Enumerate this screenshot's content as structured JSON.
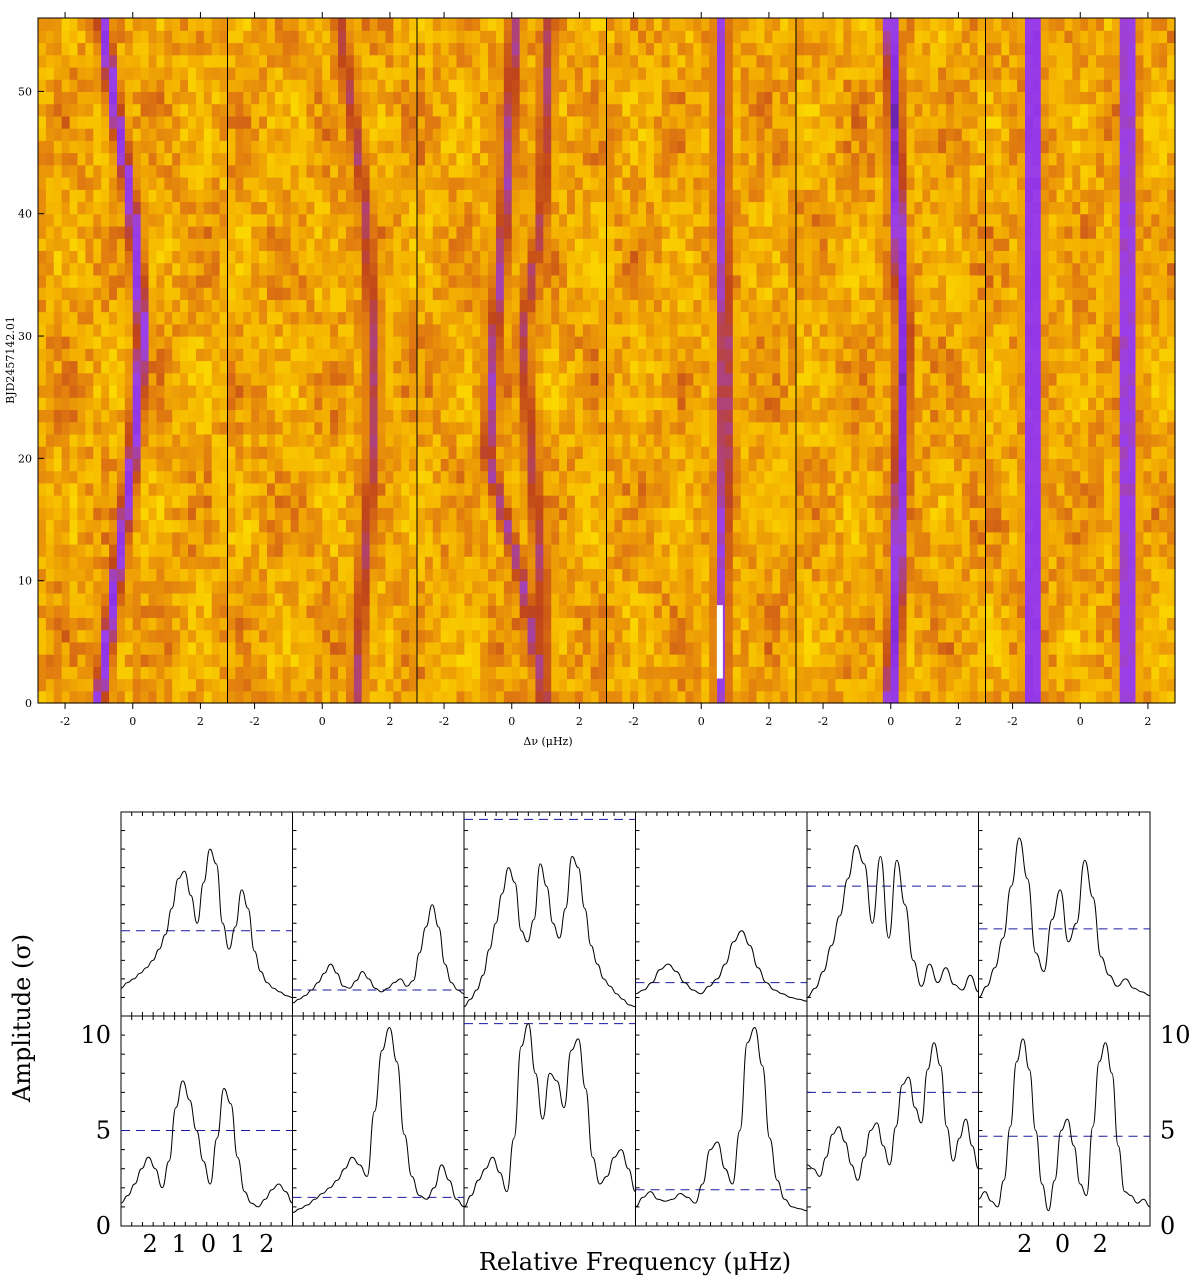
{
  "top": {
    "ylabel": "BJD2457142.01",
    "xlabel": "Δν (μHz)",
    "yticks": [
      0,
      10,
      20,
      30,
      40,
      50
    ],
    "xticks": [
      -2,
      0,
      2
    ],
    "ylim": [
      0,
      56
    ],
    "xlim": [
      -2.8,
      2.8
    ],
    "panel_count": 6,
    "colormap": [
      "#fcdc00",
      "#f5b400",
      "#e07a10",
      "#c0441a",
      "#9b40e8",
      "#8a2be2",
      "#1a1030"
    ]
  },
  "bottom": {
    "ylabel": "Amplitude (σ)",
    "xlabel": "Relative Frequency (μHz)",
    "yticks": [
      0,
      5,
      10
    ],
    "xticks_left": [
      "2",
      "1",
      "0",
      "1",
      "2"
    ],
    "xticks_right": [
      "2",
      "0",
      "2"
    ],
    "ylim": [
      0,
      11
    ]
  },
  "chart_data": [
    {
      "type": "heatmap",
      "panels": [
        {
          "ridges": [
            {
              "t": [
                0,
                10,
                20,
                30,
                40,
                50,
                56
              ],
              "x": [
                -1.0,
                -0.5,
                0.0,
                0.3,
                0.0,
                -0.6,
                -0.9
              ],
              "strength": 0.85
            }
          ]
        },
        {
          "ridges": [
            {
              "t": [
                0,
                10,
                20,
                30,
                40,
                50,
                56
              ],
              "x": [
                1.0,
                1.2,
                1.5,
                1.5,
                1.3,
                0.8,
                0.5
              ],
              "strength": 0.7
            }
          ]
        },
        {
          "ridges": [
            {
              "t": [
                0,
                10,
                20,
                30,
                40,
                56
              ],
              "x": [
                1.0,
                0.3,
                -0.7,
                -0.5,
                -0.2,
                0.1
              ],
              "strength": 0.75
            },
            {
              "t": [
                0,
                10,
                20,
                30,
                40,
                56
              ],
              "x": [
                0.9,
                0.9,
                0.6,
                0.3,
                0.9,
                1.1
              ],
              "strength": 0.7
            }
          ]
        },
        {
          "ridges": [
            {
              "t": [
                0,
                10,
                20,
                30,
                40,
                50,
                56
              ],
              "x": [
                0.6,
                0.6,
                0.7,
                0.7,
                0.6,
                0.6,
                0.6
              ],
              "strength": 0.8
            }
          ]
        },
        {
          "ridges": [
            {
              "t": [
                0,
                10,
                20,
                30,
                40,
                50,
                56
              ],
              "x": [
                0.0,
                0.2,
                0.3,
                0.4,
                0.2,
                0.1,
                0.0
              ],
              "strength": 0.9
            }
          ]
        },
        {
          "ridges": [
            {
              "t": [
                0,
                56
              ],
              "x": [
                -1.4,
                -1.4
              ],
              "strength": 0.95
            },
            {
              "t": [
                0,
                56
              ],
              "x": [
                1.4,
                1.4
              ],
              "strength": 0.9
            }
          ]
        }
      ],
      "marker": {
        "panel": 4,
        "x": 0.55,
        "t": [
          2,
          8
        ],
        "color": "#ffffff"
      }
    },
    {
      "type": "line",
      "row": "upper",
      "ylim": [
        0,
        11
      ],
      "panels": [
        {
          "values": [
            1.5,
            1.8,
            2.0,
            2.3,
            2.6,
            3.0,
            3.6,
            4.4,
            5.8,
            7.4,
            7.8,
            6.5,
            5.0,
            7.2,
            9.0,
            8.2,
            5.0,
            3.6,
            4.8,
            6.8,
            5.8,
            3.5,
            2.4,
            1.8,
            1.5,
            1.3,
            1.1,
            1.0
          ],
          "threshold": 4.6
        },
        {
          "values": [
            0.7,
            0.9,
            1.1,
            1.4,
            1.8,
            2.3,
            2.8,
            2.3,
            1.6,
            1.5,
            1.9,
            2.4,
            2.0,
            1.5,
            1.3,
            1.5,
            1.8,
            2.0,
            1.6,
            1.9,
            3.4,
            4.8,
            6.0,
            4.8,
            2.8,
            1.8,
            1.4,
            1.2
          ],
          "threshold": 1.4
        },
        {
          "values": [
            0.5,
            0.9,
            1.4,
            2.2,
            3.6,
            5.0,
            6.6,
            8.0,
            7.2,
            4.6,
            4.0,
            5.2,
            8.2,
            7.0,
            5.0,
            4.2,
            5.8,
            8.6,
            8.0,
            5.8,
            3.8,
            2.8,
            2.0,
            1.6,
            1.2,
            0.9,
            0.6,
            0.5
          ],
          "threshold": 10.6
        },
        {
          "values": [
            1.2,
            1.4,
            1.8,
            2.5,
            2.8,
            2.4,
            1.8,
            1.4,
            1.2,
            1.6,
            2.0,
            2.8,
            4.0,
            4.6,
            3.8,
            2.6,
            1.8,
            1.4,
            1.2,
            1.0,
            0.9,
            0.8
          ],
          "threshold": 1.8
        },
        {
          "values": [
            1.0,
            1.5,
            2.4,
            3.8,
            5.4,
            7.4,
            9.2,
            8.2,
            5.0,
            8.6,
            4.2,
            8.4,
            6.0,
            3.0,
            1.6,
            2.8,
            1.8,
            2.6,
            1.7,
            1.4,
            2.2,
            1.3
          ],
          "threshold": 7.0
        },
        {
          "values": [
            1.0,
            1.6,
            2.6,
            4.2,
            7.0,
            9.6,
            7.4,
            3.4,
            2.4,
            5.2,
            6.8,
            4.0,
            5.0,
            8.4,
            6.4,
            3.2,
            2.2,
            1.6,
            2.0,
            1.5,
            1.3,
            1.1
          ],
          "threshold": 4.7
        }
      ]
    },
    {
      "type": "line",
      "row": "lower",
      "ylim": [
        0,
        11
      ],
      "xticks_left": [
        "2",
        "1",
        "0",
        "1",
        "2"
      ],
      "xticks_right": [
        "2",
        "0",
        "2"
      ],
      "panels": [
        {
          "values": [
            1.2,
            1.6,
            2.2,
            3.0,
            3.6,
            3.0,
            2.0,
            3.4,
            6.2,
            7.6,
            6.6,
            5.0,
            3.4,
            2.2,
            4.6,
            7.2,
            6.4,
            3.6,
            1.8,
            1.2,
            1.0,
            1.4,
            1.9,
            2.2,
            1.8,
            1.2
          ],
          "threshold": 5.0
        },
        {
          "values": [
            0.7,
            0.9,
            1.1,
            1.4,
            1.7,
            2.0,
            2.4,
            3.0,
            3.6,
            3.2,
            2.6,
            6.0,
            9.2,
            10.4,
            8.6,
            4.8,
            2.6,
            1.6,
            1.4,
            2.0,
            3.2,
            2.4,
            1.4,
            1.0
          ],
          "threshold": 1.5
        },
        {
          "values": [
            1.0,
            1.6,
            2.4,
            3.0,
            3.6,
            2.8,
            1.8,
            4.6,
            9.4,
            10.6,
            8.0,
            5.6,
            8.0,
            7.6,
            6.2,
            9.2,
            9.8,
            7.2,
            3.6,
            2.2,
            2.6,
            3.6,
            4.0,
            3.0,
            1.8
          ],
          "threshold": 10.6
        },
        {
          "values": [
            1.0,
            1.5,
            1.8,
            1.4,
            1.3,
            1.4,
            1.7,
            1.5,
            1.2,
            2.2,
            4.0,
            4.4,
            3.0,
            2.2,
            5.0,
            9.6,
            10.4,
            8.4,
            4.6,
            2.4,
            1.4,
            1.0,
            0.9,
            0.8
          ],
          "threshold": 1.9
        },
        {
          "values": [
            3.2,
            3.0,
            2.6,
            3.6,
            4.8,
            5.2,
            4.4,
            3.2,
            2.4,
            3.6,
            5.0,
            5.4,
            4.2,
            3.2,
            5.2,
            7.4,
            7.8,
            6.2,
            5.4,
            8.2,
            9.6,
            8.4,
            5.2,
            3.4,
            4.6,
            5.6,
            4.2,
            3.0
          ],
          "threshold": 7.0
        },
        {
          "values": [
            1.4,
            1.8,
            1.3,
            1.0,
            2.4,
            5.2,
            8.6,
            9.8,
            8.2,
            5.0,
            2.2,
            0.8,
            2.4,
            5.0,
            5.6,
            4.2,
            2.2,
            1.6,
            5.2,
            8.6,
            9.6,
            8.0,
            4.2,
            1.8,
            1.6,
            1.2,
            1.4,
            1.0
          ],
          "threshold": 4.7
        }
      ]
    }
  ]
}
